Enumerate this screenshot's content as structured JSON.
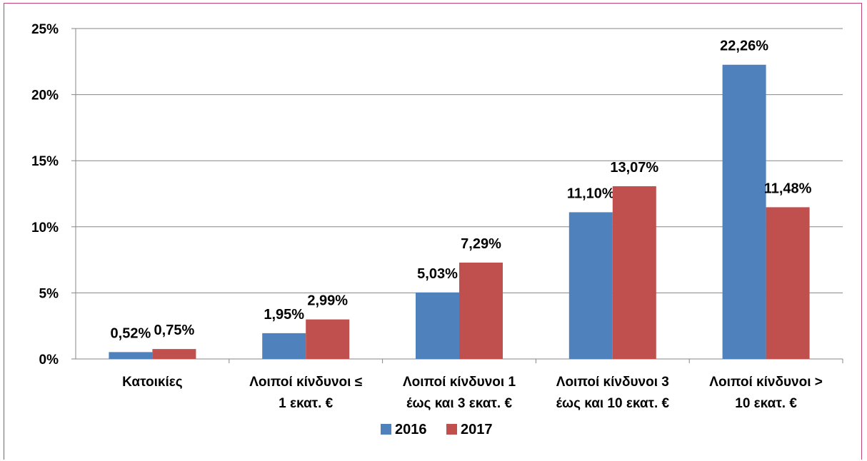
{
  "chart_data": {
    "type": "bar",
    "title": "",
    "xlabel": "",
    "ylabel": "",
    "ylim": [
      0,
      25
    ],
    "y_ticks": [
      "0%",
      "5%",
      "10%",
      "15%",
      "20%",
      "25%"
    ],
    "grid": true,
    "legend_position": "bottom",
    "categories": [
      [
        "Κατοικίες"
      ],
      [
        "Λοιποί κίνδυνοι ≤",
        "1 εκατ. €"
      ],
      [
        "Λοιποί κίνδυνοι 1",
        "έως και 3 εκατ. €"
      ],
      [
        "Λοιποί κίνδυνοι 3",
        "έως και 10 εκατ. €"
      ],
      [
        "Λοιποί κίνδυνοι >",
        "10 εκατ. €"
      ]
    ],
    "series": [
      {
        "name": "2016",
        "color": "#4f81bd",
        "values": [
          0.52,
          1.95,
          5.03,
          11.1,
          22.26
        ],
        "labels": [
          "0,52%",
          "1,95%",
          "5,03%",
          "11,10%",
          "22,26%"
        ]
      },
      {
        "name": "2017",
        "color": "#c0504d",
        "values": [
          0.75,
          2.99,
          7.29,
          13.07,
          11.48
        ],
        "labels": [
          "0,75%",
          "2,99%",
          "7,29%",
          "13,07%",
          "11,48%"
        ]
      }
    ]
  }
}
